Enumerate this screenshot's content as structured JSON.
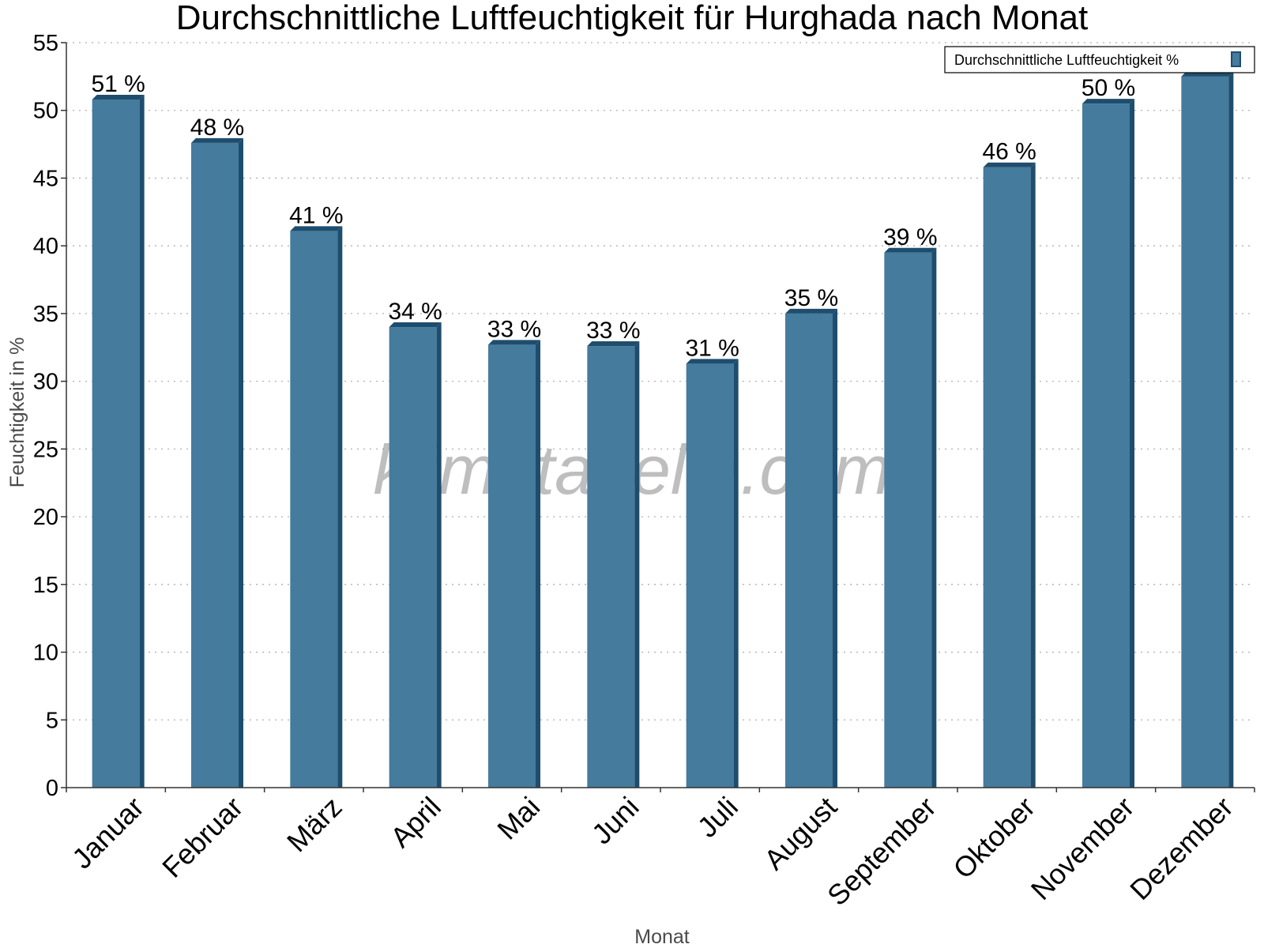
{
  "chart_data": {
    "type": "bar",
    "title": "Durchschnittliche Luftfeuchtigkeit für Hurghada nach Monat",
    "xlabel": "Monat",
    "ylabel": "Feuchtigkeit in %",
    "ylim": [
      0,
      55
    ],
    "yticks": [
      0,
      5,
      10,
      15,
      20,
      25,
      30,
      35,
      40,
      45,
      50,
      55
    ],
    "grid": true,
    "legend_position": "top-right",
    "categories": [
      "Januar",
      "Februar",
      "März",
      "April",
      "Mai",
      "Juni",
      "Juli",
      "August",
      "September",
      "Oktober",
      "November",
      "Dezember"
    ],
    "series": [
      {
        "name": "Durchschnittliche Luftfeuchtigkeit %",
        "values": [
          50.8,
          47.6,
          41.1,
          34.0,
          32.7,
          32.6,
          31.3,
          35.0,
          39.5,
          45.8,
          50.5,
          52.5
        ],
        "labels": [
          "51 %",
          "48 %",
          "41 %",
          "34 %",
          "33 %",
          "33 %",
          "31 %",
          "35 %",
          "39 %",
          "46 %",
          "50 %",
          ""
        ],
        "color": "#457b9d",
        "side_color": "#1e4d6e"
      }
    ],
    "watermark": "klimatabelle.com"
  }
}
